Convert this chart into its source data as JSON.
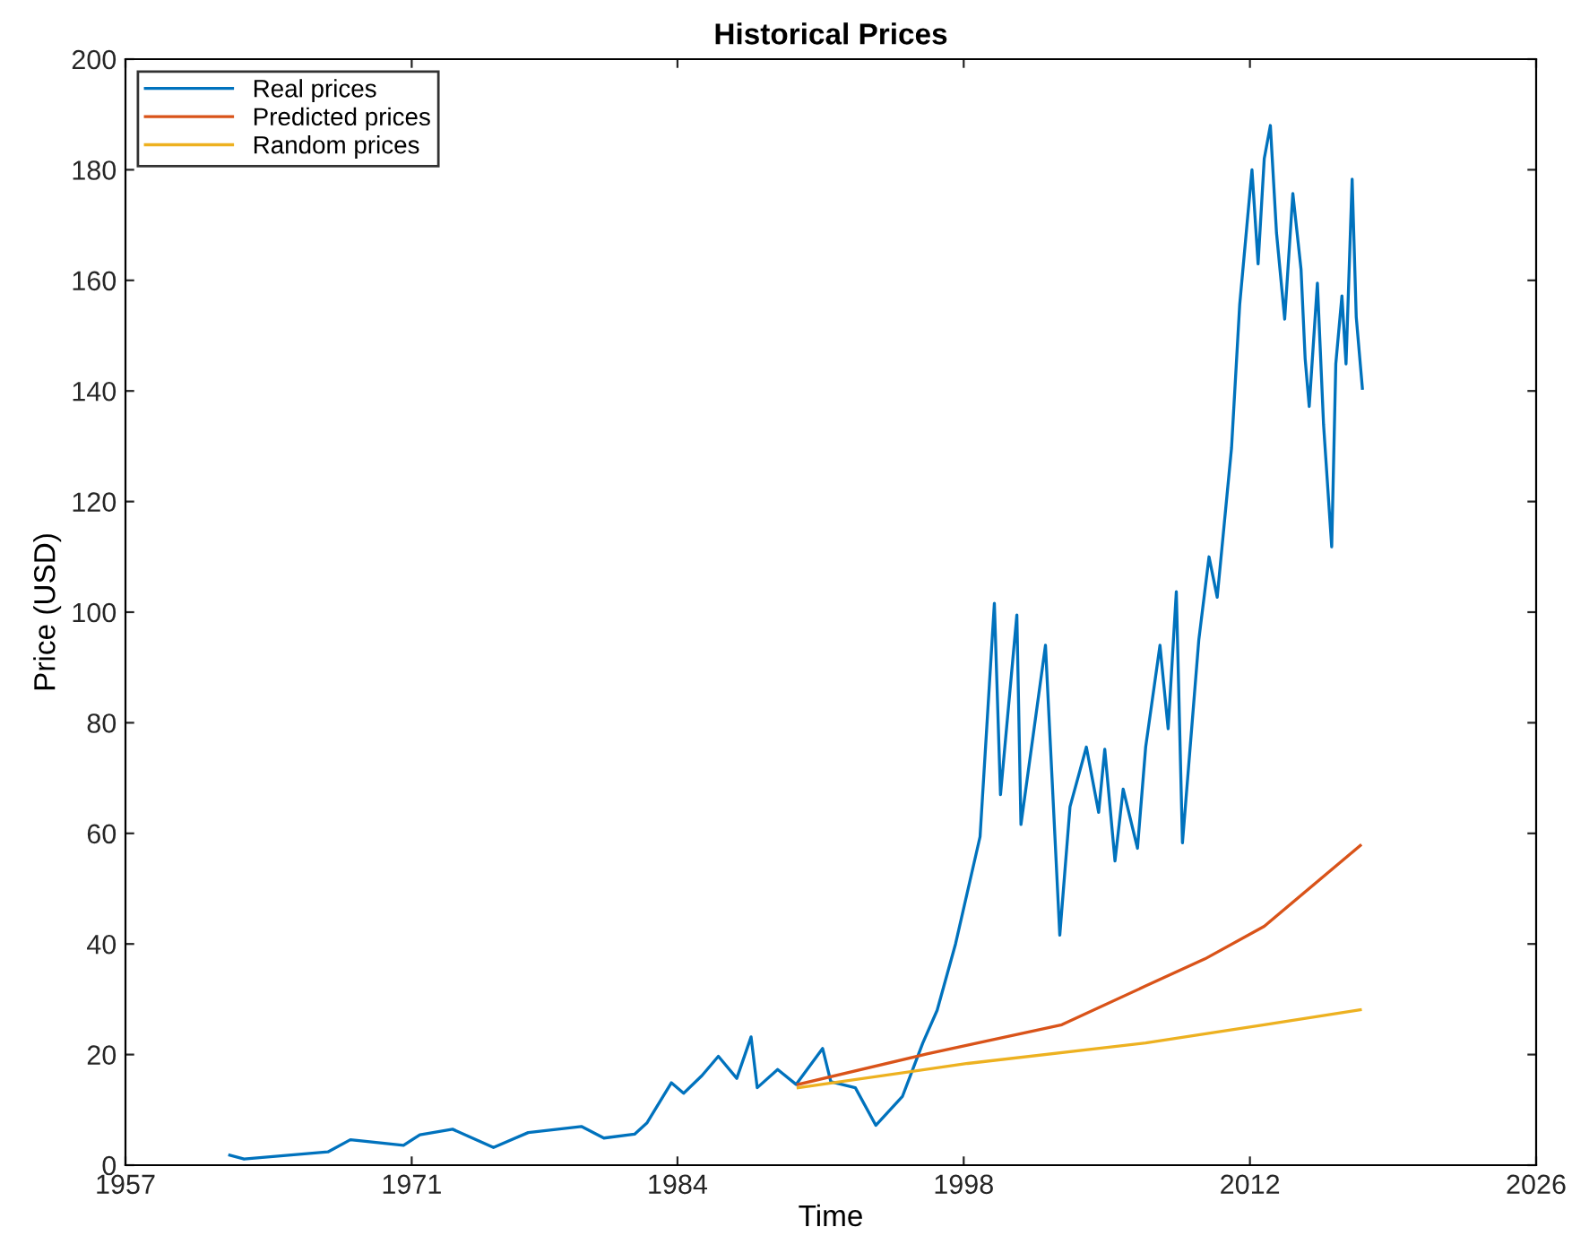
{
  "chart_data": {
    "type": "line",
    "title": "Historical Prices",
    "xlabel": "Time",
    "ylabel": "Price (USD)",
    "xlim": [
      1957,
      2026
    ],
    "xticks": [
      1957,
      1971,
      1984,
      1998,
      2012,
      2026
    ],
    "ylim": [
      0,
      200
    ],
    "yticks": [
      0,
      20,
      40,
      60,
      80,
      100,
      120,
      140,
      160,
      180,
      200
    ],
    "grid": false,
    "legend": "top left",
    "marker": "none",
    "line_style": "solid",
    "series": [
      {
        "name": "Real prices",
        "color": "#0072bd",
        "x": [
          1962.1,
          1962.8,
          1966.9,
          1968.0,
          1970.6,
          1971.4,
          1973.0,
          1975.0,
          1976.7,
          1979.3,
          1980.4,
          1981.9,
          1982.5,
          1983.7,
          1984.3,
          1985.2,
          1986.0,
          1986.9,
          1987.6,
          1987.9,
          1988.9,
          1989.8,
          1991.1,
          1991.5,
          1992.7,
          1993.7,
          1995.0,
          1996.0,
          1996.7,
          1997.6,
          1998.8,
          1999.5,
          1999.8,
          2000.6,
          2000.8,
          2002.0,
          2002.7,
          2003.2,
          2004.0,
          2004.6,
          2004.9,
          2005.4,
          2005.8,
          2006.5,
          2006.9,
          2007.6,
          2008.0,
          2008.4,
          2008.7,
          2009.5,
          2010.0,
          2010.4,
          2011.1,
          2011.5,
          2012.1,
          2012.4,
          2012.7,
          2013.0,
          2013.3,
          2013.7,
          2014.1,
          2014.5,
          2014.7,
          2014.9,
          2015.3,
          2015.6,
          2016.0,
          2016.2,
          2016.5,
          2016.7,
          2017.0,
          2017.2,
          2017.5
        ],
        "values": [
          1.8,
          1.1,
          2.4,
          4.6,
          3.6,
          5.5,
          6.5,
          3.2,
          5.9,
          7.0,
          4.9,
          5.6,
          7.6,
          14.9,
          13.0,
          16.2,
          19.7,
          15.7,
          23.2,
          14.0,
          17.3,
          14.6,
          21.1,
          15.1,
          14.0,
          7.2,
          12.4,
          22.1,
          28,
          40,
          59.4,
          101.6,
          67,
          99.5,
          61.6,
          94,
          41.6,
          64.8,
          75.6,
          63.8,
          75.2,
          55,
          68,
          57.3,
          75.6,
          94,
          78.9,
          103.7,
          58.3,
          95,
          110,
          102.7,
          129.7,
          155.6,
          180,
          163,
          182,
          188,
          168.6,
          153,
          175.7,
          162,
          145.9,
          137.2,
          159.5,
          134,
          111.8,
          144.9,
          157.2,
          144.9,
          178.3,
          153.4,
          140.5
        ]
      },
      {
        "name": "Predicted prices",
        "color": "#d95319",
        "x": [
          1989.9,
          1996.2,
          2002.8,
          2006.9,
          2009.8,
          2012.7,
          2017.4
        ],
        "values": [
          14.6,
          20.1,
          25.4,
          32.4,
          37.3,
          43.2,
          57.8
        ]
      },
      {
        "name": "Random prices",
        "color": "#edb120",
        "x": [
          1989.9,
          1998.2,
          2006.9,
          2012.7,
          2017.4
        ],
        "values": [
          14.0,
          18.4,
          22.1,
          25.4,
          28.1
        ]
      }
    ]
  }
}
